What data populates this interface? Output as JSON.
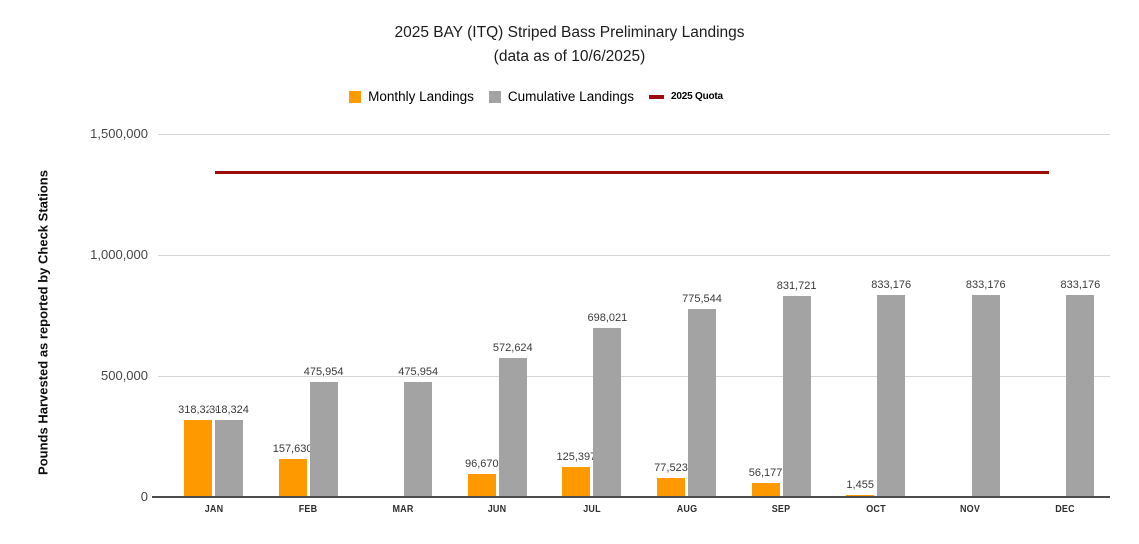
{
  "title": "2025 BAY (ITQ) Striped Bass Preliminary Landings",
  "subtitle": "(data as of 10/6/2025)",
  "y_axis_title": "Pounds Harvested as reported by Check Stations",
  "legend": [
    {
      "label": "Monthly Landings",
      "color": "#FF9900",
      "marker": "square"
    },
    {
      "label": "Cumulative Landings",
      "color": "#A3A3A3",
      "marker": "square"
    },
    {
      "label": "2025 Quota",
      "color": "#9E0B0B",
      "marker": "line"
    }
  ],
  "colors": {
    "monthly": "#FF9900",
    "cumulative": "#A3A3A3",
    "quota": "#9E0B0B",
    "gridline": "#d6d6d6",
    "axis": "#4d4d4d"
  },
  "chart_data": {
    "type": "bar",
    "title": "2025 BAY (ITQ) Striped Bass Preliminary Landings (data as of 10/6/2025)",
    "xlabel": "",
    "ylabel": "Pounds Harvested as reported by Check Stations",
    "ylim": [
      0,
      1500000
    ],
    "yticks": [
      {
        "value": 0,
        "label": "0"
      },
      {
        "value": 500000,
        "label": "500,000"
      },
      {
        "value": 1000000,
        "label": "1,000,000"
      },
      {
        "value": 1500000,
        "label": "1,500,000"
      }
    ],
    "grid": "horizontal",
    "legend_position": "top",
    "categories": [
      "JAN",
      "FEB",
      "MAR",
      "JUN",
      "JUL",
      "AUG",
      "SEP",
      "OCT",
      "NOV",
      "DEC"
    ],
    "series": [
      {
        "name": "Monthly Landings",
        "color": "#FF9900",
        "values": [
          318324,
          157630,
          0,
          96670,
          125397,
          77523,
          56177,
          1455,
          0,
          0
        ],
        "labels": [
          "318,324",
          "157,630",
          "",
          "96,670",
          "125,397",
          "77,523",
          "56,177",
          "1,455",
          "",
          ""
        ]
      },
      {
        "name": "Cumulative Landings",
        "color": "#A3A3A3",
        "values": [
          318324,
          475954,
          475954,
          572624,
          698021,
          775544,
          831721,
          833176,
          833176,
          833176
        ],
        "labels": [
          "318,324",
          "475,954",
          "475,954",
          "572,624",
          "698,021",
          "775,544",
          "831,721",
          "833,176",
          "833,176",
          "833,176"
        ]
      }
    ],
    "quota": {
      "name": "2025 Quota",
      "value": 1340000,
      "color": "#9E0B0B"
    }
  }
}
